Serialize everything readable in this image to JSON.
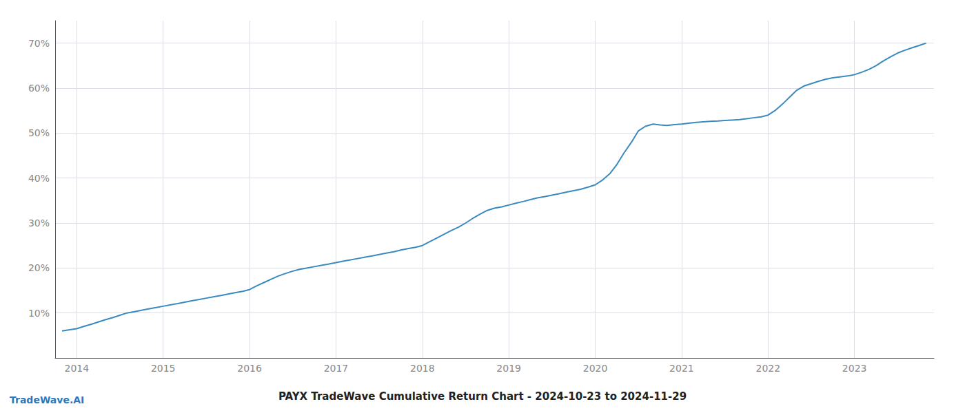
{
  "chart_data": {
    "type": "line",
    "title": "PAYX TradeWave Cumulative Return Chart - 2024-10-23 to 2024-11-29",
    "annotations": [
      "TradeWave.AI"
    ],
    "color": "#3a8abf",
    "grid": true,
    "x": [
      2013.83,
      2014.0,
      2014.08,
      2014.17,
      2014.25,
      2014.33,
      2014.42,
      2014.5,
      2014.58,
      2014.67,
      2014.75,
      2014.83,
      2014.92,
      2015.0,
      2015.08,
      2015.17,
      2015.25,
      2015.33,
      2015.42,
      2015.5,
      2015.58,
      2015.67,
      2015.75,
      2015.83,
      2015.92,
      2016.0,
      2016.08,
      2016.17,
      2016.25,
      2016.33,
      2016.42,
      2016.5,
      2016.58,
      2016.67,
      2016.75,
      2016.83,
      2016.92,
      2017.0,
      2017.08,
      2017.17,
      2017.25,
      2017.33,
      2017.42,
      2017.5,
      2017.58,
      2017.67,
      2017.75,
      2017.83,
      2017.92,
      2018.0,
      2018.08,
      2018.17,
      2018.25,
      2018.33,
      2018.42,
      2018.5,
      2018.58,
      2018.67,
      2018.75,
      2018.83,
      2018.92,
      2019.0,
      2019.08,
      2019.17,
      2019.25,
      2019.33,
      2019.42,
      2019.5,
      2019.58,
      2019.67,
      2019.75,
      2019.83,
      2019.92,
      2020.0,
      2020.08,
      2020.17,
      2020.25,
      2020.33,
      2020.42,
      2020.5,
      2020.58,
      2020.67,
      2020.75,
      2020.83,
      2020.92,
      2021.0,
      2021.08,
      2021.17,
      2021.25,
      2021.33,
      2021.42,
      2021.5,
      2021.58,
      2021.67,
      2021.75,
      2021.83,
      2021.92,
      2022.0,
      2022.08,
      2022.17,
      2022.25,
      2022.33,
      2022.42,
      2022.5,
      2022.58,
      2022.67,
      2022.75,
      2022.83,
      2022.92,
      2023.0,
      2023.08,
      2023.17,
      2023.25,
      2023.33,
      2023.42,
      2023.5,
      2023.58,
      2023.67,
      2023.75,
      2023.83
    ],
    "values": [
      6.0,
      6.5,
      7.0,
      7.5,
      8.0,
      8.5,
      9.0,
      9.5,
      10.0,
      10.3,
      10.6,
      10.9,
      11.2,
      11.5,
      11.8,
      12.1,
      12.4,
      12.7,
      13.0,
      13.3,
      13.6,
      13.9,
      14.2,
      14.5,
      14.8,
      15.2,
      16.0,
      16.8,
      17.5,
      18.2,
      18.8,
      19.3,
      19.7,
      20.0,
      20.3,
      20.6,
      20.9,
      21.2,
      21.5,
      21.8,
      22.1,
      22.4,
      22.7,
      23.0,
      23.3,
      23.6,
      24.0,
      24.3,
      24.6,
      25.0,
      25.8,
      26.7,
      27.5,
      28.3,
      29.1,
      30.0,
      31.0,
      32.0,
      32.8,
      33.3,
      33.6,
      34.0,
      34.4,
      34.8,
      35.2,
      35.6,
      35.9,
      36.2,
      36.5,
      36.9,
      37.2,
      37.5,
      38.0,
      38.5,
      39.5,
      41.0,
      43.0,
      45.5,
      48.0,
      50.5,
      51.5,
      52.0,
      51.8,
      51.7,
      51.9,
      52.0,
      52.2,
      52.4,
      52.5,
      52.6,
      52.7,
      52.8,
      52.9,
      53.0,
      53.2,
      53.4,
      53.6,
      54.0,
      55.0,
      56.5,
      58.0,
      59.5,
      60.5,
      61.0,
      61.5,
      62.0,
      62.3,
      62.5,
      62.7,
      63.0,
      63.5,
      64.2,
      65.0,
      66.0,
      67.0,
      67.8,
      68.4,
      69.0,
      69.5,
      70.0
    ],
    "xlim": [
      2013.75,
      2023.92
    ],
    "xticks": [
      2014,
      2015,
      2016,
      2017,
      2018,
      2019,
      2020,
      2021,
      2022,
      2023
    ],
    "ylim": [
      0,
      75
    ],
    "yticks": [
      {
        "value": 10,
        "label": "10%"
      },
      {
        "value": 20,
        "label": "20%"
      },
      {
        "value": 30,
        "label": "30%"
      },
      {
        "value": 40,
        "label": "40%"
      },
      {
        "value": 50,
        "label": "50%"
      },
      {
        "value": 60,
        "label": "60%"
      },
      {
        "value": 70,
        "label": "70%"
      }
    ]
  }
}
